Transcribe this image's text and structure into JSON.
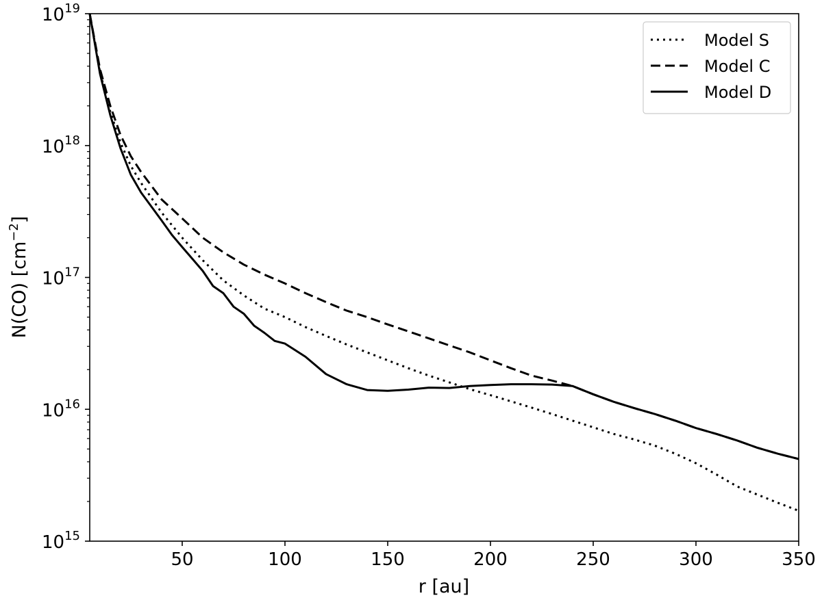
{
  "chart_data": {
    "type": "line",
    "xlabel": "r [au]",
    "ylabel_main": "N(CO) [cm",
    "ylabel_sup": "−2",
    "ylabel_close": "]",
    "xlim": [
      5,
      350
    ],
    "ylim": [
      1000000000000000.0,
      1e+19
    ],
    "yscale": "log",
    "grid": false,
    "legend_placement": "top-right",
    "x_ticks": [
      50,
      100,
      150,
      200,
      250,
      300,
      350
    ],
    "x_tick_labels": [
      "50",
      "100",
      "150",
      "200",
      "250",
      "300",
      "350"
    ],
    "y_ticks": [
      1000000000000000.0,
      1e+16,
      1e+17,
      1e+18,
      1e+19
    ],
    "y_tick_base": "10",
    "y_tick_exponents": [
      "15",
      "16",
      "17",
      "18",
      "19"
    ],
    "series": [
      {
        "name": "Model S",
        "style": "dotted",
        "x": [
          5,
          10,
          15,
          20,
          25,
          30,
          40,
          50,
          60,
          70,
          80,
          90,
          100,
          110,
          120,
          130,
          140,
          150,
          160,
          170,
          180,
          190,
          200,
          210,
          220,
          230,
          240,
          250,
          260,
          270,
          280,
          290,
          300,
          310,
          320,
          330,
          340,
          350
        ],
        "y": [
          1e+19,
          3.6e+18,
          1.8e+18,
          1.05e+18,
          7e+17,
          5.2e+17,
          3.1e+17,
          2e+17,
          1.35e+17,
          9.5e+16,
          7.3e+16,
          5.8e+16,
          5e+16,
          4.2e+16,
          3.6e+16,
          3.1e+16,
          2.7e+16,
          2.35e+16,
          2.05e+16,
          1.8e+16,
          1.6e+16,
          1.42e+16,
          1.28e+16,
          1.15e+16,
          1.03e+16,
          9200000000000000.0,
          8200000000000000.0,
          7300000000000000.0,
          6500000000000000.0,
          5900000000000000.0,
          5300000000000000.0,
          4600000000000000.0,
          3900000000000000.0,
          3200000000000000.0,
          2600000000000000.0,
          2250000000000000.0,
          1950000000000000.0,
          1700000000000000.0
        ]
      },
      {
        "name": "Model C",
        "style": "dashed",
        "x": [
          5,
          10,
          15,
          20,
          25,
          30,
          40,
          50,
          60,
          70,
          80,
          90,
          100,
          110,
          120,
          130,
          140,
          150,
          160,
          170,
          180,
          190,
          200,
          210,
          220,
          230,
          240,
          250,
          260,
          270,
          280,
          290,
          300,
          310,
          320,
          330,
          340,
          350
        ],
        "y": [
          1e+19,
          3.8e+18,
          2e+18,
          1.2e+18,
          8.3e+17,
          6.3e+17,
          3.9e+17,
          2.8e+17,
          2e+17,
          1.55e+17,
          1.25e+17,
          1.05e+17,
          9e+16,
          7.6e+16,
          6.5e+16,
          5.6e+16,
          5e+16,
          4.4e+16,
          3.9e+16,
          3.45e+16,
          3.05e+16,
          2.7e+16,
          2.35e+16,
          2.05e+16,
          1.8e+16,
          1.65e+16,
          1.5e+16,
          1.3e+16,
          1.14e+16,
          1.02e+16,
          9200000000000000.0,
          8200000000000000.0,
          7200000000000000.0,
          6500000000000000.0,
          5800000000000000.0,
          5100000000000000.0,
          4600000000000000.0,
          4200000000000000.0
        ]
      },
      {
        "name": "Model D",
        "style": "solid",
        "x": [
          5,
          10,
          15,
          20,
          25,
          30,
          40,
          45,
          50,
          55,
          60,
          65,
          70,
          75,
          80,
          85,
          90,
          95,
          100,
          110,
          120,
          130,
          140,
          150,
          160,
          170,
          180,
          190,
          200,
          210,
          220,
          230,
          240,
          250,
          260,
          270,
          280,
          290,
          300,
          310,
          320,
          330,
          340,
          350
        ],
        "y": [
          1e+19,
          3.5e+18,
          1.7e+18,
          9.5e+17,
          6e+17,
          4.4e+17,
          2.7e+17,
          2.1e+17,
          1.7e+17,
          1.38e+17,
          1.12e+17,
          8.6e+16,
          7.6e+16,
          6e+16,
          5.3e+16,
          4.3e+16,
          3.8e+16,
          3.3e+16,
          3.15e+16,
          2.5e+16,
          1.85e+16,
          1.55e+16,
          1.4e+16,
          1.38e+16,
          1.41e+16,
          1.46e+16,
          1.45e+16,
          1.5e+16,
          1.53e+16,
          1.55e+16,
          1.55e+16,
          1.54e+16,
          1.5e+16,
          1.3e+16,
          1.14e+16,
          1.02e+16,
          9200000000000000.0,
          8200000000000000.0,
          7200000000000000.0,
          6500000000000000.0,
          5800000000000000.0,
          5100000000000000.0,
          4600000000000000.0,
          4200000000000000.0
        ]
      }
    ]
  }
}
